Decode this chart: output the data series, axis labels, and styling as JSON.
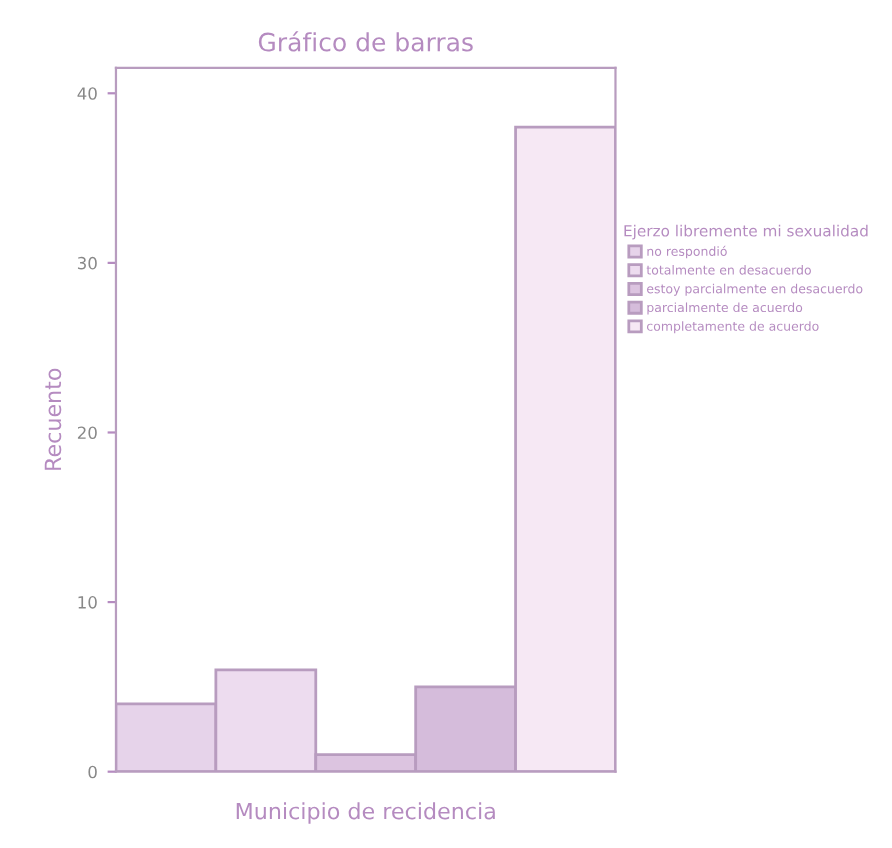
{
  "chart_data": {
    "type": "bar",
    "title": "Gráfico de barras",
    "xlabel": "Municipio de recidencia",
    "ylabel": "Recuento",
    "legend_title": "Ejerzo libremente mi sexualidad",
    "categories": [
      null
    ],
    "series": [
      {
        "name": "no respondió",
        "color": "#e6d3ea",
        "values": [
          4
        ]
      },
      {
        "name": "totalmente en desacuerdo",
        "color": "#eddcef",
        "values": [
          6
        ]
      },
      {
        "name": "estoy parcialmente en desacuerdo",
        "color": "#dcc4e0",
        "values": [
          1
        ]
      },
      {
        "name": "parcialmente de acuerdo",
        "color": "#d5bcdb",
        "values": [
          5
        ]
      },
      {
        "name": "completamente de acuerdo",
        "color": "#f6e8f4",
        "values": [
          38
        ]
      }
    ],
    "ylim": [
      0,
      41.5
    ],
    "yticks": [
      0,
      10,
      20,
      30,
      40
    ],
    "grid": false,
    "legend": "right"
  }
}
